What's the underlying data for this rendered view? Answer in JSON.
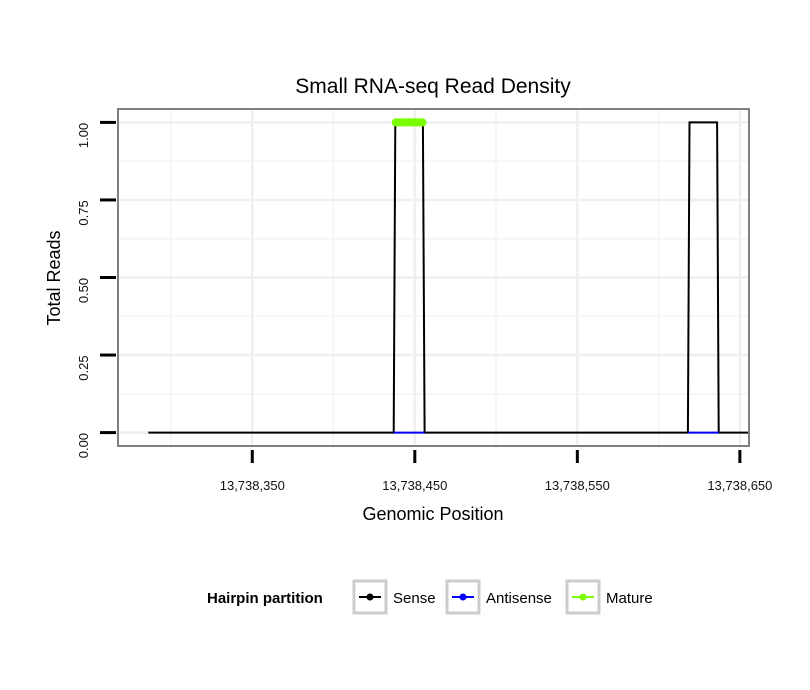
{
  "chart_data": {
    "type": "line",
    "title": "Small RNA-seq Read Density",
    "xlabel": "Genomic Position",
    "ylabel": "Total Reads",
    "xlim": [
      13738268,
      13738655
    ],
    "ylim": [
      -0.04,
      1.04
    ],
    "x_ticks": [
      13738350,
      13738450,
      13738550,
      13738650
    ],
    "x_tick_labels": [
      "13,738,350",
      "13,738,450",
      "13,738,550",
      "13,738,650"
    ],
    "y_ticks": [
      0,
      0.25,
      0.5,
      0.75,
      1
    ],
    "y_tick_labels": [
      "0.00",
      "0.25",
      "0.50",
      "0.75",
      "1.00"
    ],
    "grid": true,
    "series": [
      {
        "name": "Sense",
        "color": "#000000",
        "x": [
          13738286,
          13738437,
          13738438,
          13738455,
          13738456,
          13738618,
          13738619,
          13738636,
          13738637,
          13738655
        ],
        "y": [
          0,
          0,
          1,
          1,
          0,
          0,
          1,
          1,
          0,
          0
        ]
      },
      {
        "name": "Antisense",
        "color": "#0000ff",
        "x": [
          13738437,
          13738456,
          13738618,
          13738637
        ],
        "y": [
          0,
          0,
          0,
          0
        ],
        "segments": [
          [
            0,
            1
          ],
          [
            2,
            3
          ]
        ]
      },
      {
        "name": "Mature",
        "color": "#7cfc00",
        "x": [
          13738437,
          13738456
        ],
        "y": [
          1,
          1
        ]
      }
    ],
    "legend": {
      "title": "Hairpin partition",
      "position": "bottom",
      "entries": [
        {
          "label": "Sense",
          "color": "#000000"
        },
        {
          "label": "Antisense",
          "color": "#0000ff"
        },
        {
          "label": "Mature",
          "color": "#7cfc00"
        }
      ]
    }
  }
}
